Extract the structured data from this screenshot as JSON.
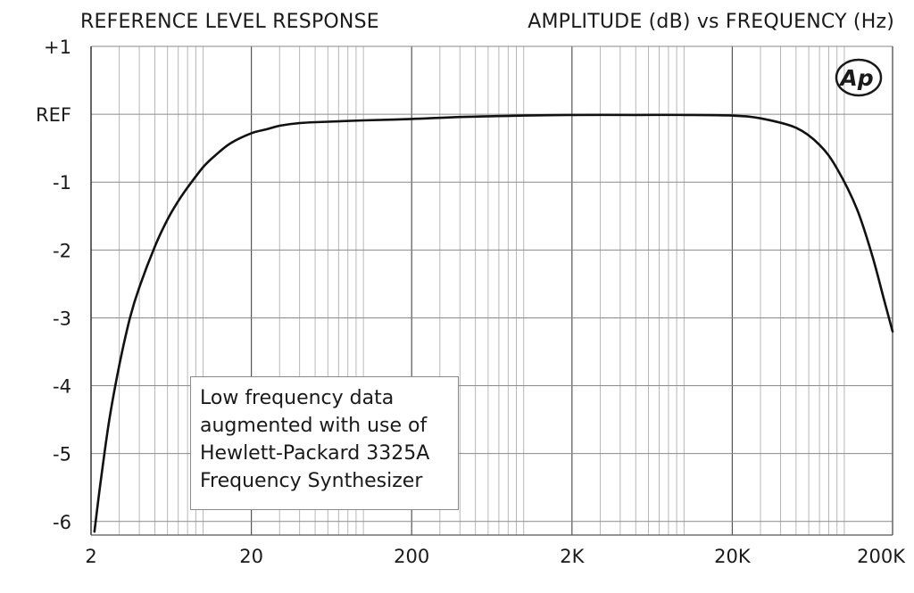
{
  "chart_data": {
    "type": "line",
    "title": "REFERENCE LEVEL RESPONSE",
    "subtitle": "AMPLITUDE (dB) vs FREQUENCY (Hz)",
    "x_scale": "log",
    "xlim": [
      2,
      200000
    ],
    "ylim": [
      -6.2,
      1
    ],
    "x_ticks": [
      {
        "value": 2,
        "label": "2"
      },
      {
        "value": 20,
        "label": "20"
      },
      {
        "value": 200,
        "label": "200"
      },
      {
        "value": 2000,
        "label": "2K"
      },
      {
        "value": 20000,
        "label": "20K"
      },
      {
        "value": 200000,
        "label": "200K"
      }
    ],
    "y_ticks": [
      {
        "value": 1,
        "label": "+1"
      },
      {
        "value": 0,
        "label": "REF"
      },
      {
        "value": -1,
        "label": "-1"
      },
      {
        "value": -2,
        "label": "-2"
      },
      {
        "value": -3,
        "label": "-3"
      },
      {
        "value": -4,
        "label": "-4"
      },
      {
        "value": -5,
        "label": "-5"
      },
      {
        "value": -6,
        "label": "-6"
      }
    ],
    "grid": true,
    "series": [
      {
        "x": [
          2.1,
          2.3,
          2.6,
          3,
          3.5,
          4,
          5,
          6,
          7,
          8,
          10,
          12,
          15,
          20,
          25,
          30,
          40,
          60,
          100,
          200,
          400,
          1000,
          2000,
          5000,
          10000,
          20000,
          30000,
          50000,
          70000,
          90000,
          120000,
          150000,
          180000,
          200000
        ],
        "values": [
          -6.15,
          -5.4,
          -4.5,
          -3.7,
          -3.0,
          -2.55,
          -1.95,
          -1.55,
          -1.28,
          -1.08,
          -0.78,
          -0.6,
          -0.42,
          -0.28,
          -0.22,
          -0.17,
          -0.13,
          -0.11,
          -0.09,
          -0.07,
          -0.04,
          -0.02,
          -0.01,
          -0.01,
          -0.01,
          -0.02,
          -0.06,
          -0.2,
          -0.45,
          -0.8,
          -1.4,
          -2.1,
          -2.8,
          -3.2
        ]
      }
    ]
  },
  "annotation": {
    "lines": [
      "Low frequency data",
      "augmented with use of",
      "Hewlett-Packard 3325A",
      "Frequency Synthesizer"
    ]
  },
  "logo": {
    "text": "Ap"
  }
}
